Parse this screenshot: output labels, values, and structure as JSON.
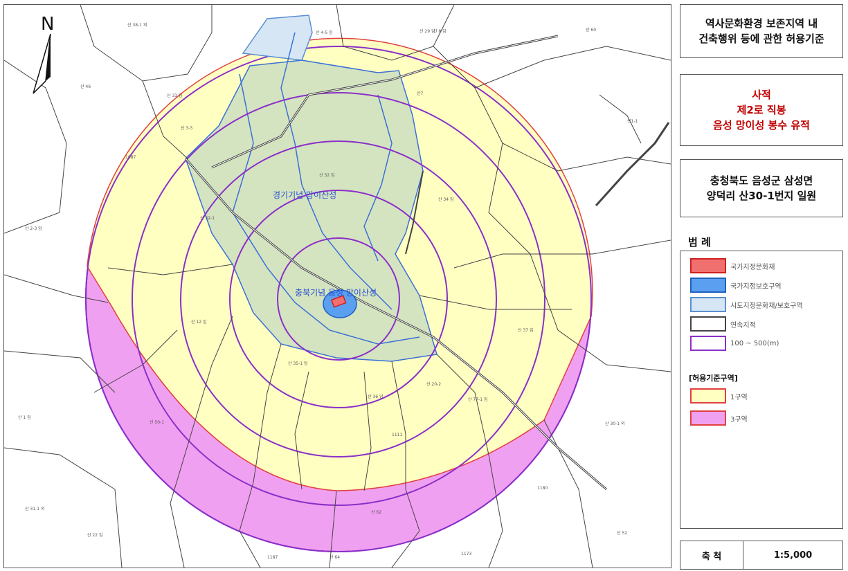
{
  "map": {
    "north_label": "N",
    "area_label_1": "경기기념 망이산성",
    "area_label_2": "충북기념 음성 망이산성",
    "parcel_labels": [
      "산 30-1 외",
      "산 32 임",
      "산 34 임",
      "산 37 임",
      "산 38-1 외",
      "산1-1",
      "산 33 임",
      "산7",
      "산 8 임",
      "산 3-3",
      "산 4-5 임",
      "1087",
      "산 46",
      "산 2-3 임",
      "산 32-1",
      "산 35-1 임",
      "산 36 임",
      "산 12 임",
      "산 20-2",
      "산 77-1 임",
      "산 29 임",
      "산 62",
      "산 31-1 외",
      "산 22 임",
      "산 50-1",
      "산 1 임",
      "1111",
      "1180",
      "1187",
      "1173",
      "산 52",
      "산 60",
      "산 64"
    ]
  },
  "title": {
    "lines": [
      "역사문화환경 보존지역 내",
      "건축행위 등에 관한 허용기준"
    ]
  },
  "site": {
    "lines": [
      "사적",
      "제2로 직봉",
      "음성 망이성 봉수 유적"
    ]
  },
  "address": {
    "lines": [
      "충청북도 음성군 삼성면",
      "양덕리 산30-1번지 일원"
    ]
  },
  "legend": {
    "title": "범 례",
    "items": [
      {
        "label": "국가지정문화재",
        "fill": "#f07070",
        "stroke": "#d02020"
      },
      {
        "label": "국가지정보호구역",
        "fill": "#5a9ff0",
        "stroke": "#2060c0"
      },
      {
        "label": "시도지정문화재/보호구역",
        "fill": "#d6e6f4",
        "stroke": "#5a8fd0"
      },
      {
        "label": "연속지적",
        "fill": "#ffffff",
        "stroke": "#444444"
      },
      {
        "label": "100 ~ 500(m)",
        "fill": "#ffffff",
        "stroke": "#8b2fc9"
      }
    ],
    "zone_heading": "[허용기준구역]",
    "zones": [
      {
        "label": "1구역",
        "fill": "#ffffc2",
        "stroke": "#e04040"
      },
      {
        "label": "3구역",
        "fill": "#f0a0f0",
        "stroke": "#e04040"
      }
    ]
  },
  "scale": {
    "label": "축 척",
    "value": "1:5,000"
  },
  "colors": {
    "zone1": "#ffffc2",
    "zone3": "#f0a0f0",
    "ring": "#8b2fc9",
    "gov_area": "#d2e3c0",
    "gov_outline": "#3a6fd8",
    "site": "#e84a4a"
  }
}
